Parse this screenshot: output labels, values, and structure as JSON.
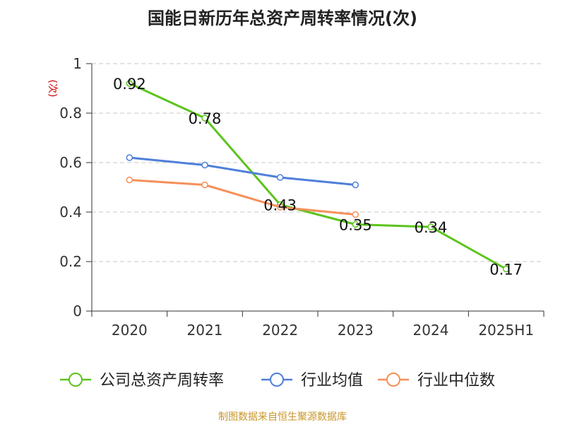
{
  "chart_data": {
    "type": "line",
    "title": "国能日新历年总资产周转率情况(次)",
    "ylabel": "(次)",
    "xlabel": "",
    "categories": [
      "2020",
      "2021",
      "2022",
      "2023",
      "2024",
      "2025H1"
    ],
    "ylim": [
      0,
      1
    ],
    "yticks": [
      "0",
      "0.2",
      "0.4",
      "0.6",
      "0.8",
      "1"
    ],
    "grid": true,
    "legend_position": "bottom",
    "series": [
      {
        "name": "公司总资产周转率",
        "color": "#5cc41d",
        "values": [
          0.92,
          0.78,
          0.43,
          0.35,
          0.34,
          0.17
        ],
        "labels": [
          "0.92",
          "0.78",
          "0.43",
          "0.35",
          "0.34",
          "0.17"
        ]
      },
      {
        "name": "行业均值",
        "color": "#4f7fd9",
        "values": [
          0.62,
          0.59,
          0.54,
          0.51,
          null,
          null
        ]
      },
      {
        "name": "行业中位数",
        "color": "#f5905a",
        "values": [
          0.53,
          0.51,
          0.42,
          0.39,
          null,
          null
        ]
      }
    ],
    "source": "制图数据来自恒生聚源数据库",
    "source_color": "#c8962a",
    "ylabel_color": "#cc0000"
  }
}
